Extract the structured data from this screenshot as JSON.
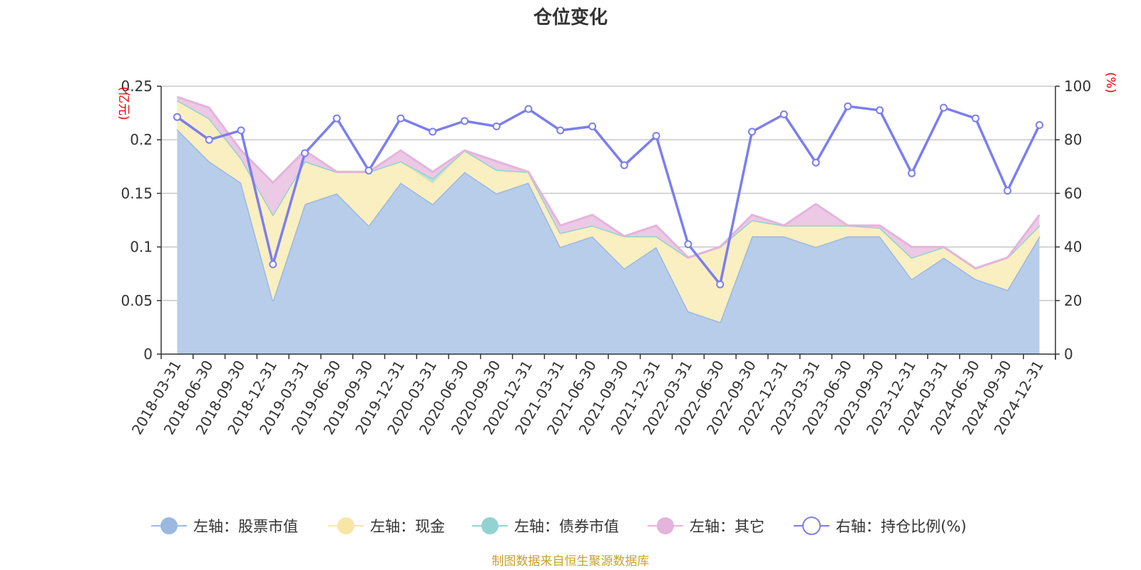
{
  "chart_data": {
    "type": "area",
    "title": "仓位变化",
    "source": "制图数据来自恒生聚源数据库",
    "left_axis": {
      "unit": "(亿元)",
      "ylim": [
        0,
        0.25
      ],
      "ticks": [
        0,
        0.05,
        0.1,
        0.15,
        0.2,
        0.25
      ],
      "tick_labels": [
        "0",
        "0.05",
        "0.1",
        "0.15",
        "0.2",
        "0.25"
      ]
    },
    "right_axis": {
      "unit": "(%)",
      "ylim": [
        0,
        100
      ],
      "ticks": [
        0,
        20,
        40,
        60,
        80,
        100
      ],
      "tick_labels": [
        "0",
        "20",
        "40",
        "60",
        "80",
        "100"
      ]
    },
    "categories": [
      "2018-03-31",
      "2018-06-30",
      "2018-09-30",
      "2018-12-31",
      "2019-03-31",
      "2019-06-30",
      "2019-09-30",
      "2019-12-31",
      "2020-03-31",
      "2020-06-30",
      "2020-09-30",
      "2020-12-31",
      "2021-03-31",
      "2021-06-30",
      "2021-09-30",
      "2021-12-31",
      "2022-03-31",
      "2022-06-30",
      "2022-09-30",
      "2022-12-31",
      "2023-03-31",
      "2023-06-30",
      "2023-09-30",
      "2023-12-31",
      "2024-03-31",
      "2024-06-30",
      "2024-09-30",
      "2024-12-31"
    ],
    "stacked_series": [
      {
        "name": "左轴：股票市值",
        "color": "#9bb9e0",
        "fill": "#b7cdea",
        "values": [
          0.21,
          0.18,
          0.16,
          0.05,
          0.14,
          0.15,
          0.12,
          0.16,
          0.14,
          0.17,
          0.15,
          0.16,
          0.1,
          0.11,
          0.08,
          0.1,
          0.04,
          0.03,
          0.11,
          0.11,
          0.1,
          0.11,
          0.11,
          0.07,
          0.09,
          0.07,
          0.06,
          0.11
        ]
      },
      {
        "name": "左轴：现金",
        "color": "#f8e6a6",
        "fill": "#faefc1",
        "values": [
          0.027,
          0.04,
          0.023,
          0.08,
          0.04,
          0.02,
          0.05,
          0.02,
          0.02,
          0.02,
          0.022,
          0.01,
          0.013,
          0.01,
          0.03,
          0.01,
          0.05,
          0.07,
          0.015,
          0.01,
          0.02,
          0.01,
          0.008,
          0.02,
          0.01,
          0.01,
          0.03,
          0.01
        ]
      },
      {
        "name": "左轴：债券市值",
        "color": "#92d3d2",
        "fill": "#b5e2e1",
        "values": [
          0,
          0,
          0,
          0,
          0,
          0,
          0,
          0,
          0.004,
          0,
          0,
          0,
          0,
          0,
          0,
          0,
          0,
          0,
          0,
          0,
          0,
          0,
          0,
          0,
          0,
          0,
          0,
          0
        ]
      },
      {
        "name": "左轴：其它",
        "color": "#e4b4dc",
        "fill": "#ecc9e5",
        "values": [
          0.003,
          0.01,
          0.007,
          0.03,
          0.01,
          0.0,
          0.0,
          0.01,
          0.006,
          0.0,
          0.008,
          0.0,
          0.007,
          0.01,
          0.0,
          0.01,
          0.0,
          0.0,
          0.005,
          0.0,
          0.02,
          0.0,
          0.002,
          0.01,
          0.0,
          0.0,
          0.0,
          0.01
        ]
      }
    ],
    "line_series": {
      "name": "右轴：持仓比例(%)",
      "color": "#7b7ef0",
      "values": [
        88.5,
        80,
        83.5,
        33.5,
        75,
        88,
        68.5,
        88,
        83,
        87,
        85,
        91.5,
        83.5,
        85,
        70.5,
        81.5,
        41,
        26,
        83,
        89.5,
        71.5,
        92.5,
        91,
        67.5,
        92,
        88,
        61,
        85.5
      ]
    },
    "legend": [
      {
        "label": "左轴：股票市值",
        "color": "#9bb9e0",
        "marker": "filled"
      },
      {
        "label": "左轴：现金",
        "color": "#f8e6a6",
        "marker": "filled"
      },
      {
        "label": "左轴：债券市值",
        "color": "#92d3d2",
        "marker": "filled"
      },
      {
        "label": "左轴：其它",
        "color": "#e4b4dc",
        "marker": "filled"
      },
      {
        "label": "右轴：持仓比例(%)",
        "color": "#7b7ef0",
        "marker": "hollow"
      }
    ]
  }
}
